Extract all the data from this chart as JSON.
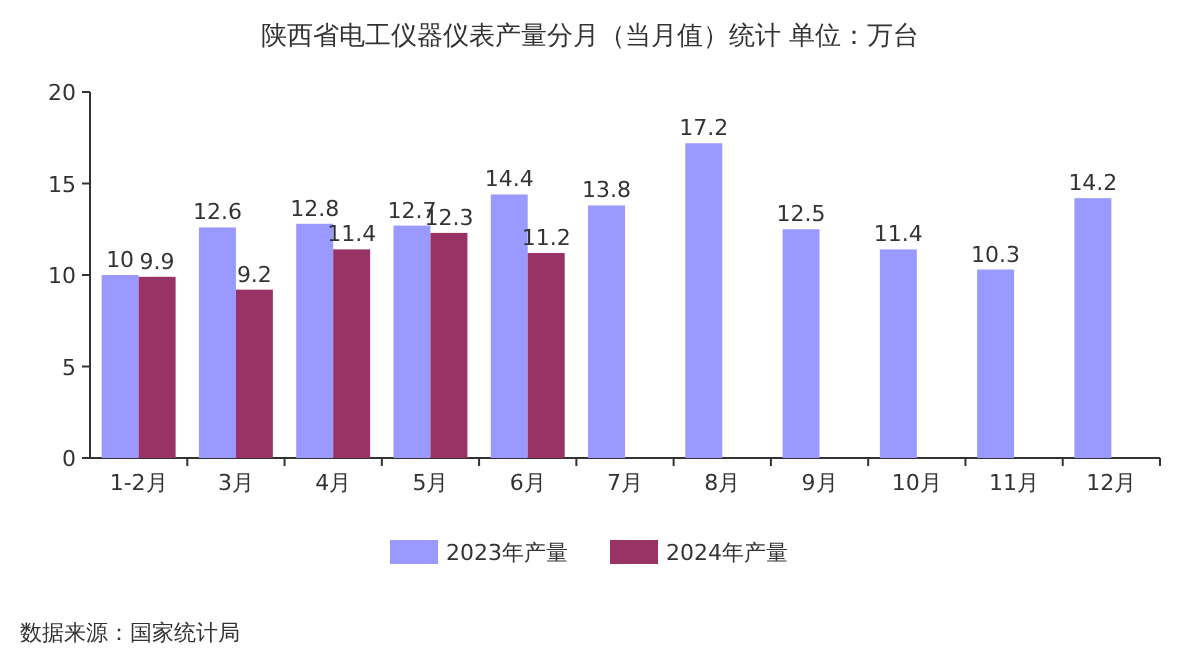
{
  "chart_data": {
    "type": "bar",
    "title": "陕西省电工仪器仪表产量分月（当月值）统计 单位：万台",
    "categories": [
      "1-2月",
      "3月",
      "4月",
      "5月",
      "6月",
      "7月",
      "8月",
      "9月",
      "10月",
      "11月",
      "12月"
    ],
    "series": [
      {
        "name": "2023年产量",
        "color": "#9999ff",
        "values": [
          10,
          12.6,
          12.8,
          12.7,
          14.4,
          13.8,
          17.2,
          12.5,
          11.4,
          10.3,
          14.2
        ]
      },
      {
        "name": "2024年产量",
        "color": "#993366",
        "values": [
          9.9,
          9.2,
          11.4,
          12.3,
          11.2,
          null,
          null,
          null,
          null,
          null,
          null
        ]
      }
    ],
    "ylim": [
      0,
      20
    ],
    "yticks": [
      0,
      5,
      10,
      15,
      20
    ],
    "data_labels": true,
    "legend": "bottom",
    "annotations": [
      "数据来源：国家统计局"
    ]
  }
}
